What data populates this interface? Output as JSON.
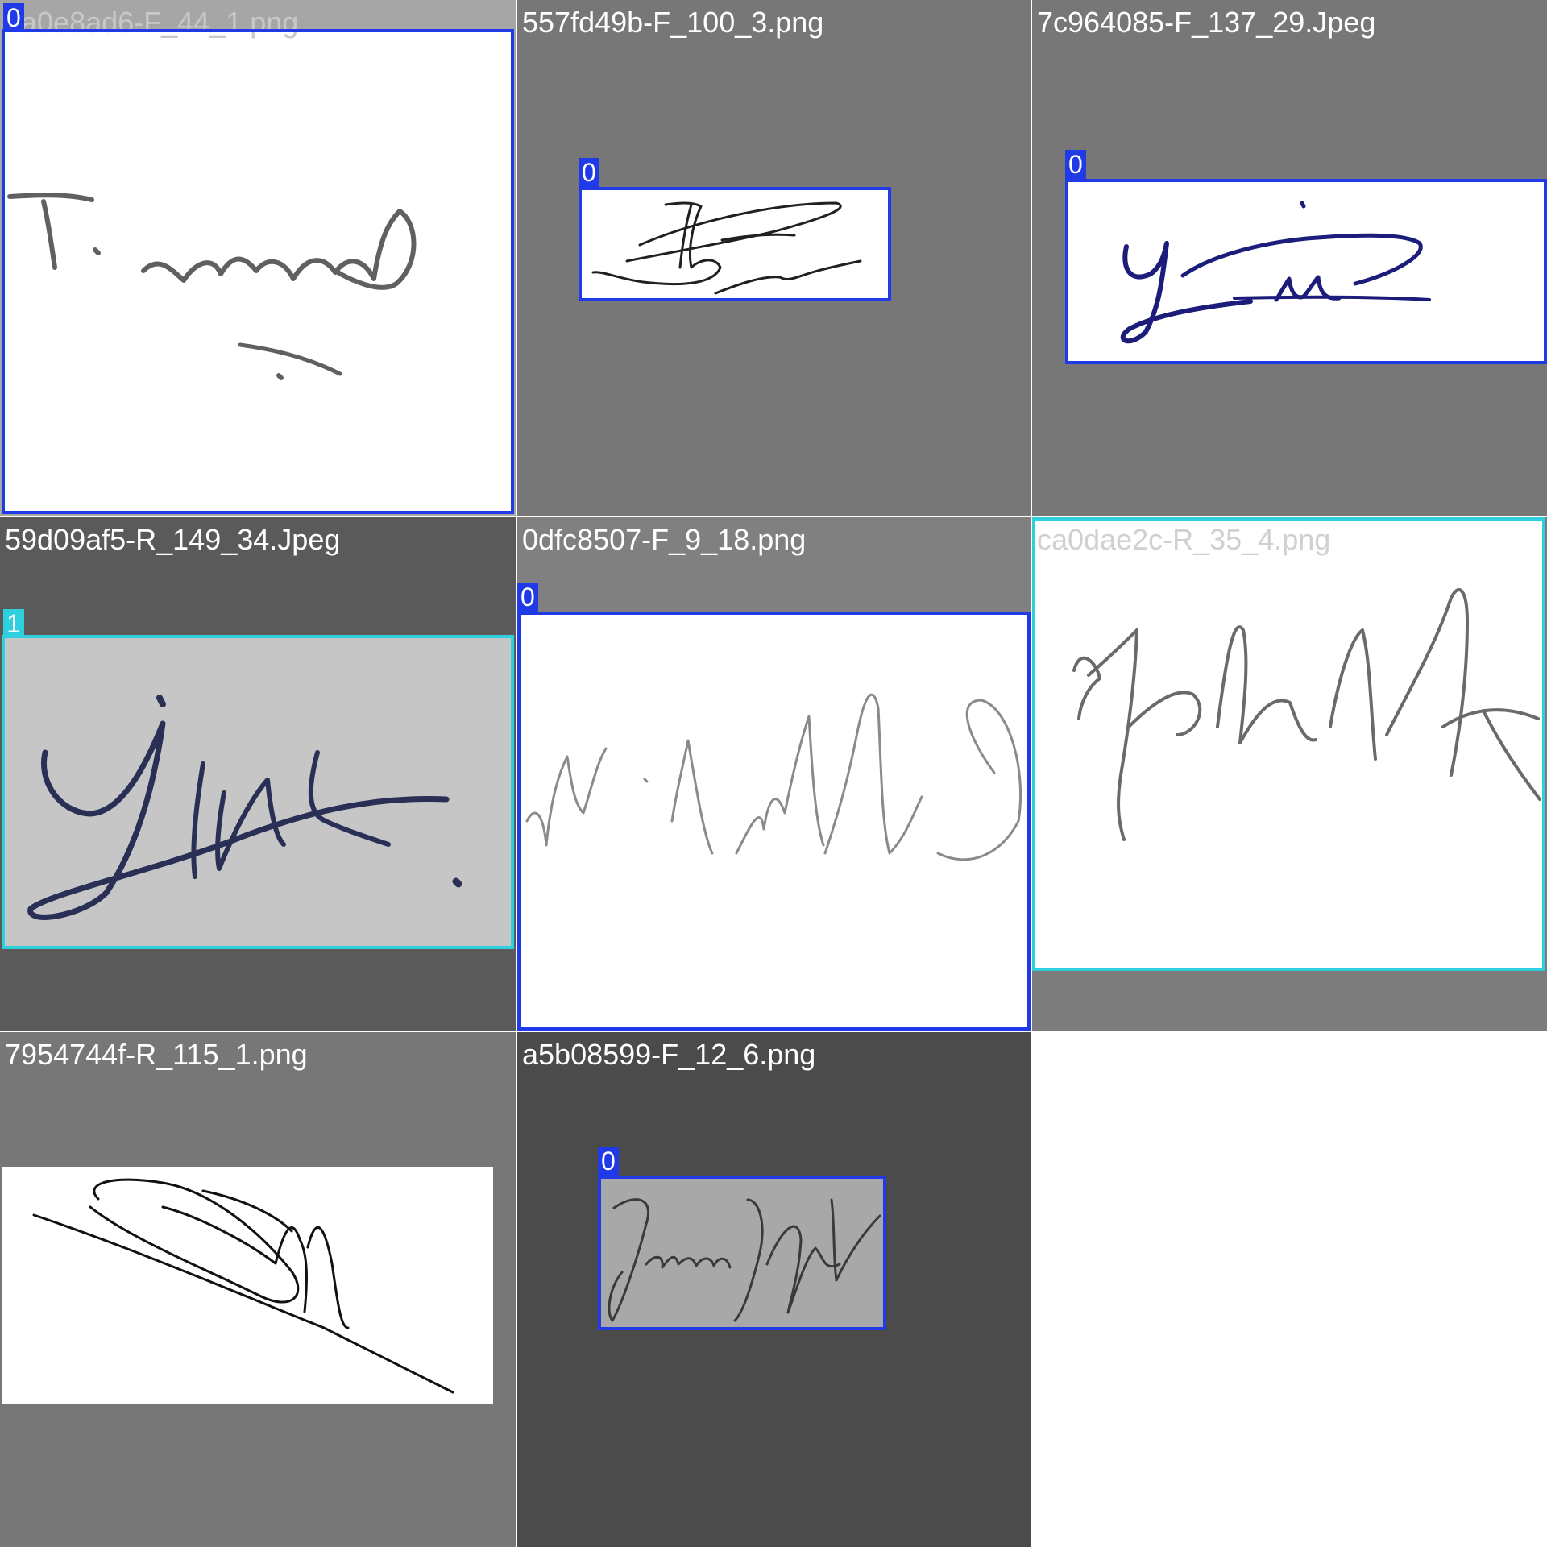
{
  "colors": {
    "class_0_box": "#1f3ae6",
    "class_1_box": "#2fd0de",
    "grid_line": "#ffffff"
  },
  "tiles": [
    {
      "filename": "a0e8ad6-F_44_1.png",
      "class_label": "0",
      "signature_text": "T. sarah",
      "ink_color": "#606060"
    },
    {
      "filename": "557fd49b-F_100_3.png",
      "class_label": "0",
      "signature_text": "B",
      "ink_color": "#202020"
    },
    {
      "filename": "7c964085-F_137_29.Jpeg",
      "class_label": "0",
      "signature_text": "Yie",
      "ink_color": "#1c1c7a"
    },
    {
      "filename": "59d09af5-R_149_34.Jpeg",
      "class_label": "1",
      "signature_text": "",
      "ink_color": "#2a2f55"
    },
    {
      "filename": "0dfc8507-F_9_18.png",
      "class_label": "0",
      "signature_text": "N. K. rudel",
      "ink_color": "#8a8a8a"
    },
    {
      "filename": "ca0dae2c-R_35_4.png",
      "class_label": "1",
      "signature_text": "",
      "ink_color": "#6a6a6a"
    },
    {
      "filename": "7954744f-R_115_1.png",
      "class_label": "",
      "signature_text": "",
      "ink_color": "#111111"
    },
    {
      "filename": "a5b08599-F_12_6.png",
      "class_label": "0",
      "signature_text": "Jason Holt",
      "ink_color": "#3a3a3a"
    }
  ]
}
